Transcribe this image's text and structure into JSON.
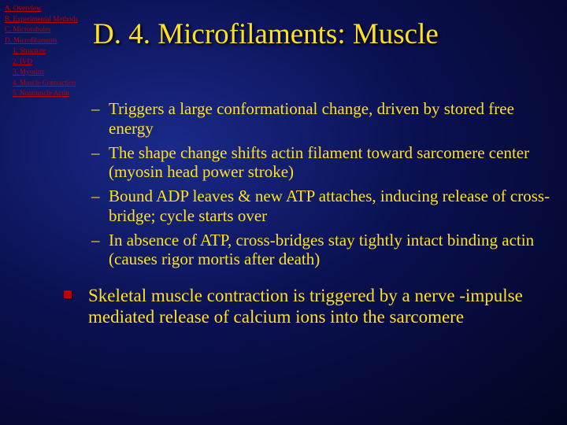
{
  "nav": {
    "items": [
      {
        "label": "A. Overview",
        "indent": 0
      },
      {
        "label": "B. Experimental Methods",
        "indent": 0
      },
      {
        "label": "C. Microtubules",
        "indent": 0
      },
      {
        "label": "D. Microfilaments",
        "indent": 0
      },
      {
        "label": "1. Structure",
        "indent": 1
      },
      {
        "label": "2. IVD",
        "indent": 1
      },
      {
        "label": "3. Myosins",
        "indent": 1
      },
      {
        "label": "4. Muscle Contraction",
        "indent": 1
      },
      {
        "label": "5. Nonmuscle Actin",
        "indent": 1
      }
    ]
  },
  "title": "D. 4. Microfilaments: Muscle",
  "bullets": {
    "sub": [
      "Triggers a large conformational change, driven by stored free energy",
      "The shape change shifts actin filament toward sarcomere center (myosin head power stroke)",
      "Bound ADP leaves & new ATP attaches, inducing release of cross-bridge; cycle starts over",
      "In absence of ATP, cross-bridges stay tightly intact binding actin (causes rigor mortis after death)"
    ],
    "main": "Skeletal muscle contraction is triggered by a nerve -impulse mediated release of calcium ions into the sarcomere"
  },
  "colors": {
    "text": "#ffe020",
    "link": "#c00000",
    "bullet": "#c00000"
  }
}
